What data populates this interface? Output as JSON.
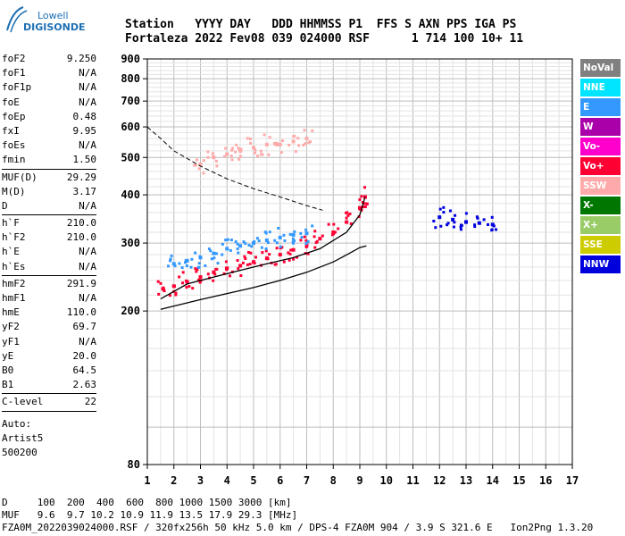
{
  "logo": {
    "line1": "Lowell",
    "line2": "DIGISONDE"
  },
  "header": {
    "line1": "Station   YYYY DAY   DDD HHMMSS P1  FFS S AXN PPS IGA PS",
    "line2": "Fortaleza 2022 Fev08 039 024000 RSF      1 714 100 10+ 11"
  },
  "params": {
    "group1": [
      {
        "name": "foF2",
        "value": "9.250"
      },
      {
        "name": "foF1",
        "value": "N/A"
      },
      {
        "name": "foF1p",
        "value": "N/A"
      },
      {
        "name": "foE",
        "value": "N/A"
      },
      {
        "name": "foEp",
        "value": "0.48"
      },
      {
        "name": "fxI",
        "value": "9.95"
      },
      {
        "name": "foEs",
        "value": "N/A"
      },
      {
        "name": "fmin",
        "value": "1.50"
      }
    ],
    "group2": [
      {
        "name": "MUF(D)",
        "value": "29.29"
      },
      {
        "name": "M(D)",
        "value": "3.17"
      },
      {
        "name": "D",
        "value": "N/A"
      }
    ],
    "group3": [
      {
        "name": "h`F",
        "value": "210.0"
      },
      {
        "name": "h`F2",
        "value": "210.0"
      },
      {
        "name": "h`E",
        "value": "N/A"
      },
      {
        "name": "h`Es",
        "value": "N/A"
      }
    ],
    "group4": [
      {
        "name": "hmF2",
        "value": "291.9"
      },
      {
        "name": "hmF1",
        "value": "N/A"
      },
      {
        "name": "hmE",
        "value": "110.0"
      },
      {
        "name": "yF2",
        "value": "69.7"
      },
      {
        "name": "yF1",
        "value": "N/A"
      },
      {
        "name": "yE",
        "value": "20.0"
      },
      {
        "name": "B0",
        "value": "64.5"
      },
      {
        "name": "B1",
        "value": "2.63"
      }
    ],
    "group5": [
      {
        "name": "C-level",
        "value": "22"
      }
    ],
    "extra": [
      "Auto:",
      "Artist5",
      "500200"
    ]
  },
  "legend": [
    {
      "label": "NoVal",
      "color": "#808080"
    },
    {
      "label": "NNE",
      "color": "#00e5ff"
    },
    {
      "label": "E",
      "color": "#3399ff"
    },
    {
      "label": "W",
      "color": "#aa00aa"
    },
    {
      "label": "Vo-",
      "color": "#ff00cc"
    },
    {
      "label": "Vo+",
      "color": "#ff0033"
    },
    {
      "label": "SSW",
      "color": "#ffaaaa"
    },
    {
      "label": "X-",
      "color": "#007700"
    },
    {
      "label": "X+",
      "color": "#99cc66"
    },
    {
      "label": "SSE",
      "color": "#cccc00"
    },
    {
      "label": "NNW",
      "color": "#0000dd"
    }
  ],
  "footer": {
    "line1": "D     100  200  400  600  800 1000 1500 3000 [km]",
    "line2": "MUF   9.6  9.7 10.2 10.9 11.9 13.5 17.9 29.3 [MHz]",
    "line3": "FZA0M_2022039024000.RSF / 320fx256h 50 kHz 5.0 km / DPS-4 FZA0M 904 / 3.9 S 321.6 E   Ion2Png 1.3.20"
  },
  "chart_data": {
    "type": "scatter",
    "xlim": [
      1,
      17
    ],
    "ylim": [
      80,
      900
    ],
    "yscale": "log",
    "xticks": [
      1,
      2,
      3,
      4,
      5,
      6,
      7,
      8,
      9,
      10,
      11,
      12,
      13,
      14,
      15,
      16,
      17
    ],
    "yticks": [
      80,
      200,
      300,
      400,
      500,
      600,
      700,
      800,
      900
    ],
    "grid": true,
    "series": [
      {
        "name": "Vo+",
        "color": "#ff0033",
        "x": [
          1.6,
          2.0,
          2.5,
          3.0,
          3.5,
          4.0,
          4.5,
          5.0,
          5.5,
          6.0,
          6.5,
          7.0,
          7.5,
          8.0,
          8.5,
          9.0,
          9.2
        ],
        "y": [
          228,
          232,
          238,
          245,
          252,
          258,
          262,
          268,
          274,
          280,
          288,
          296,
          308,
          320,
          340,
          370,
          395
        ]
      },
      {
        "name": "E",
        "color": "#3399ff",
        "x": [
          2.0,
          2.5,
          3.0,
          3.5,
          4.0,
          4.5,
          5.0,
          5.5,
          6.0,
          6.5,
          7.0
        ],
        "y": [
          265,
          270,
          275,
          282,
          290,
          295,
          300,
          305,
          310,
          315,
          318
        ]
      },
      {
        "name": "NNW",
        "color": "#0000dd",
        "x": [
          12.0,
          12.5,
          13.0,
          13.5,
          14.0
        ],
        "y": [
          350,
          345,
          340,
          338,
          335
        ]
      },
      {
        "name": "SSW",
        "color": "#ffaaaa",
        "x": [
          3.0,
          3.5,
          4.0,
          4.5,
          5.0,
          5.5,
          6.0,
          6.5,
          7.0
        ],
        "y": [
          480,
          500,
          510,
          520,
          530,
          540,
          540,
          550,
          560
        ]
      }
    ],
    "profile_lower": {
      "x": [
        1.5,
        2.0,
        3.0,
        4.0,
        5.0,
        6.0,
        7.0,
        8.0,
        8.6,
        9.0,
        9.25
      ],
      "y": [
        202,
        206,
        214,
        222,
        230,
        240,
        252,
        268,
        282,
        292,
        295
      ]
    },
    "profile_upper": {
      "x": [
        1.5,
        2.5,
        3.5,
        4.5,
        5.5,
        6.5,
        7.5,
        8.5,
        9.0,
        9.2
      ],
      "y": [
        215,
        235,
        245,
        255,
        265,
        275,
        290,
        320,
        355,
        395
      ]
    },
    "dashed_curve": {
      "x": [
        1.0,
        1.5,
        2.0,
        3.0,
        4.0,
        5.0,
        6.0,
        7.0,
        7.6
      ],
      "y": [
        600,
        560,
        520,
        475,
        440,
        415,
        395,
        375,
        365
      ]
    }
  }
}
